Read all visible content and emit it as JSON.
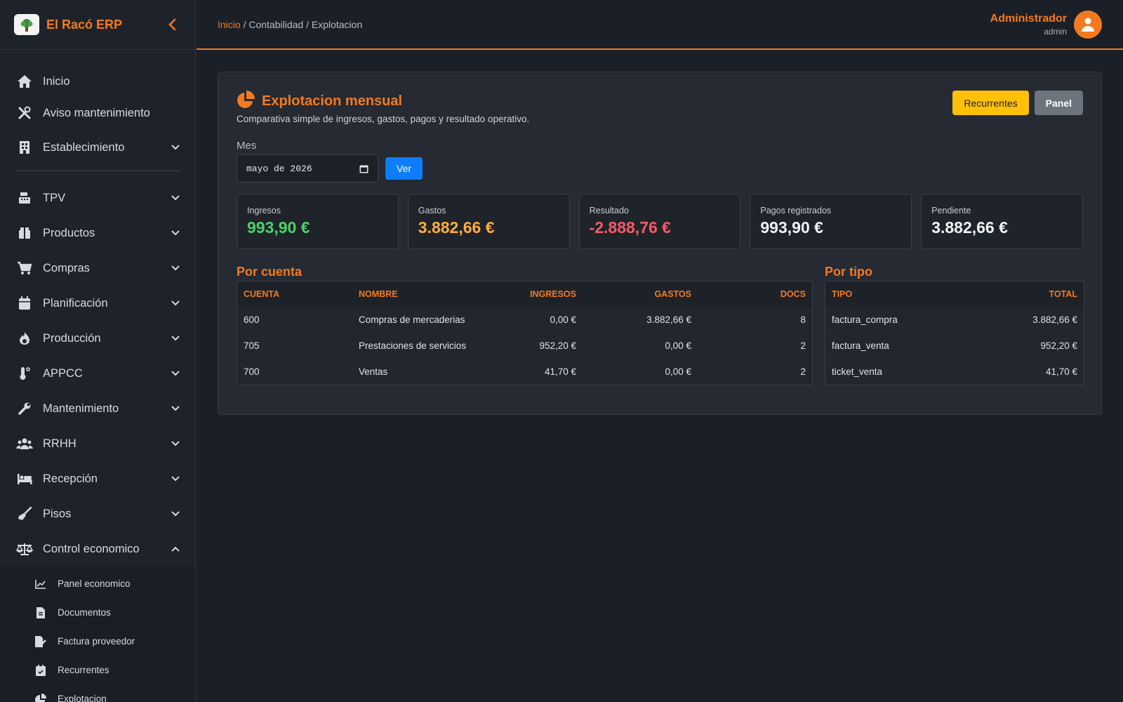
{
  "brand": {
    "name": "El Racó ERP"
  },
  "sidebar": {
    "items_top": [
      {
        "label": "Inicio",
        "icon": "home-icon"
      },
      {
        "label": "Aviso mantenimiento",
        "icon": "tools-icon"
      },
      {
        "label": "Establecimiento",
        "icon": "building-icon"
      }
    ],
    "items": [
      {
        "label": "TPV",
        "icon": "cash-register-icon"
      },
      {
        "label": "Productos",
        "icon": "box-icon"
      },
      {
        "label": "Compras",
        "icon": "cart-icon"
      },
      {
        "label": "Planificación",
        "icon": "calendar-icon"
      },
      {
        "label": "Producción",
        "icon": "fire-icon"
      },
      {
        "label": "APPCC",
        "icon": "thermometer-icon"
      },
      {
        "label": "Mantenimiento",
        "icon": "wrench-icon"
      },
      {
        "label": "RRHH",
        "icon": "users-icon"
      },
      {
        "label": "Recepción",
        "icon": "bed-icon"
      },
      {
        "label": "Pisos",
        "icon": "broom-icon"
      },
      {
        "label": "Control economico",
        "icon": "scale-icon"
      }
    ],
    "submenu": [
      {
        "label": "Panel economico",
        "icon": "chart-line-icon"
      },
      {
        "label": "Documentos",
        "icon": "file-invoice-icon"
      },
      {
        "label": "Factura proveedor",
        "icon": "file-edit-icon"
      },
      {
        "label": "Recurrentes",
        "icon": "calendar-check-icon"
      },
      {
        "label": "Explotacion",
        "icon": "pie-chart-icon"
      }
    ]
  },
  "breadcrumb": {
    "home": "Inicio",
    "rest": " / Contabilidad / Explotacion"
  },
  "user": {
    "name": "Administrador",
    "role": "admin"
  },
  "page": {
    "title": "Explotacion mensual",
    "subtitle": "Comparativa simple de ingresos, gastos, pagos y resultado operativo.",
    "buttons": {
      "recurrentes": "Recurrentes",
      "panel": "Panel"
    },
    "mes_label": "Mes",
    "mes_value": "mayo de 2026",
    "ver_label": "Ver"
  },
  "stats": [
    {
      "label": "Ingresos",
      "value": "993,90 €",
      "color": "#4cd26b"
    },
    {
      "label": "Gastos",
      "value": "3.882,66 €",
      "color": "#ffae3d"
    },
    {
      "label": "Resultado",
      "value": "-2.888,76 €",
      "color": "#f25c68"
    },
    {
      "label": "Pagos registrados",
      "value": "993,90 €",
      "color": "#f1f3f5"
    },
    {
      "label": "Pendiente",
      "value": "3.882,66 €",
      "color": "#f1f3f5"
    }
  ],
  "por_cuenta": {
    "title": "Por cuenta",
    "headers": [
      "CUENTA",
      "NOMBRE",
      "INGRESOS",
      "GASTOS",
      "DOCS"
    ],
    "rows": [
      [
        "600",
        "Compras de mercaderias",
        "0,00 €",
        "3.882,66 €",
        "8"
      ],
      [
        "705",
        "Prestaciones de servicios",
        "952,20 €",
        "0,00 €",
        "2"
      ],
      [
        "700",
        "Ventas",
        "41,70 €",
        "0,00 €",
        "2"
      ]
    ]
  },
  "por_tipo": {
    "title": "Por tipo",
    "headers": [
      "TIPO",
      "TOTAL"
    ],
    "rows": [
      [
        "factura_compra",
        "3.882,66 €"
      ],
      [
        "factura_venta",
        "952,20 €"
      ],
      [
        "ticket_venta",
        "41,70 €"
      ]
    ]
  },
  "colors": {
    "accent": "#f47a1f",
    "yellow": "#ffc107",
    "blue": "#0d7dfd"
  }
}
